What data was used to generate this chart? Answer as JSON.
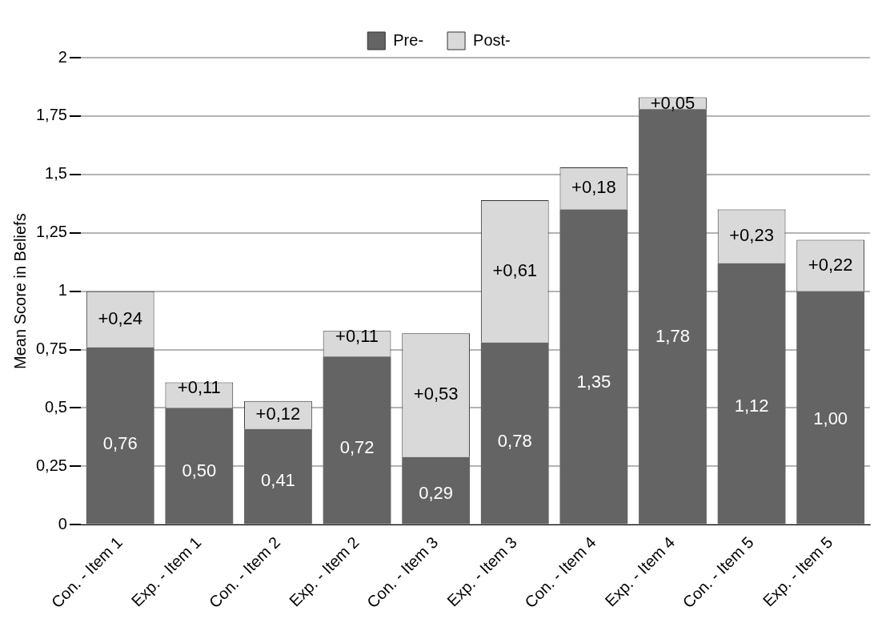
{
  "chart_data": {
    "type": "bar",
    "stacked": true,
    "ylabel": "Mean Score in Beliefs",
    "categories": [
      "Con. - Item 1",
      "Exp. - Item 1",
      "Con. - Item 2",
      "Exp. - Item 2",
      "Con. - Item 3",
      "Exp. - Item 3",
      "Con. - Item 4",
      "Exp. - Item 4",
      "Con. - Item 5",
      "Exp. - Item 5"
    ],
    "series": [
      {
        "name": "Pre-",
        "color": "#646464",
        "values": [
          0.76,
          0.5,
          0.41,
          0.72,
          0.29,
          0.78,
          1.35,
          1.78,
          1.12,
          1.0
        ],
        "value_labels": [
          "0,76",
          "0,50",
          "0,41",
          "0,72",
          "0,29",
          "0,78",
          "1,35",
          "1,78",
          "1,12",
          "1,00"
        ]
      },
      {
        "name": "Post-",
        "color": "#d9d9d9",
        "values": [
          0.24,
          0.11,
          0.12,
          0.11,
          0.53,
          0.61,
          0.18,
          0.05,
          0.23,
          0.22
        ],
        "value_labels": [
          "+0,24",
          "+0,11",
          "+0,12",
          "+0,11",
          "+0,53",
          "+0,61",
          "+0,18",
          "+0,05",
          "+0,23",
          "+0,22"
        ]
      }
    ],
    "ylim": [
      0,
      2
    ],
    "yticks": [
      0,
      {
        "value": 0.25,
        "label": "0,25"
      },
      {
        "value": 0.5,
        "label": "0,5"
      },
      {
        "value": 0.75,
        "label": "0,75"
      },
      1,
      {
        "value": 1.25,
        "label": "1,25"
      },
      {
        "value": 1.5,
        "label": "1,5"
      },
      {
        "value": 1.75,
        "label": "1,75"
      },
      2
    ],
    "grid": "y",
    "legend": "top"
  }
}
